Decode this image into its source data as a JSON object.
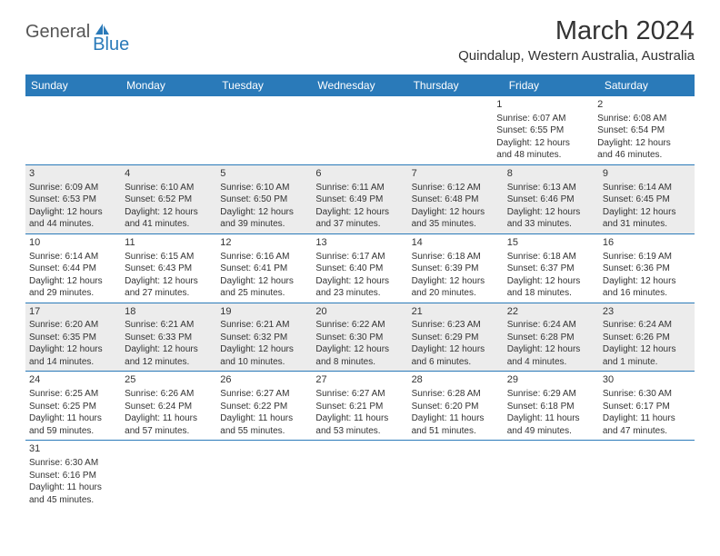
{
  "logo": {
    "text_general": "General",
    "text_blue": "Blue",
    "icon_name": "sail-icon",
    "icon_color": "#2a7ab9"
  },
  "title": "March 2024",
  "location": "Quindalup, Western Australia, Australia",
  "colors": {
    "header_bar": "#2a7ab9",
    "shaded_cell": "#ececec",
    "row_border": "#2a7ab9",
    "text": "#333333",
    "background": "#ffffff"
  },
  "weekdays": [
    "Sunday",
    "Monday",
    "Tuesday",
    "Wednesday",
    "Thursday",
    "Friday",
    "Saturday"
  ],
  "weeks": [
    [
      null,
      null,
      null,
      null,
      null,
      {
        "day": "1",
        "sunrise": "Sunrise: 6:07 AM",
        "sunset": "Sunset: 6:55 PM",
        "daylight1": "Daylight: 12 hours",
        "daylight2": "and 48 minutes."
      },
      {
        "day": "2",
        "sunrise": "Sunrise: 6:08 AM",
        "sunset": "Sunset: 6:54 PM",
        "daylight1": "Daylight: 12 hours",
        "daylight2": "and 46 minutes."
      }
    ],
    [
      {
        "day": "3",
        "sunrise": "Sunrise: 6:09 AM",
        "sunset": "Sunset: 6:53 PM",
        "daylight1": "Daylight: 12 hours",
        "daylight2": "and 44 minutes."
      },
      {
        "day": "4",
        "sunrise": "Sunrise: 6:10 AM",
        "sunset": "Sunset: 6:52 PM",
        "daylight1": "Daylight: 12 hours",
        "daylight2": "and 41 minutes."
      },
      {
        "day": "5",
        "sunrise": "Sunrise: 6:10 AM",
        "sunset": "Sunset: 6:50 PM",
        "daylight1": "Daylight: 12 hours",
        "daylight2": "and 39 minutes."
      },
      {
        "day": "6",
        "sunrise": "Sunrise: 6:11 AM",
        "sunset": "Sunset: 6:49 PM",
        "daylight1": "Daylight: 12 hours",
        "daylight2": "and 37 minutes."
      },
      {
        "day": "7",
        "sunrise": "Sunrise: 6:12 AM",
        "sunset": "Sunset: 6:48 PM",
        "daylight1": "Daylight: 12 hours",
        "daylight2": "and 35 minutes."
      },
      {
        "day": "8",
        "sunrise": "Sunrise: 6:13 AM",
        "sunset": "Sunset: 6:46 PM",
        "daylight1": "Daylight: 12 hours",
        "daylight2": "and 33 minutes."
      },
      {
        "day": "9",
        "sunrise": "Sunrise: 6:14 AM",
        "sunset": "Sunset: 6:45 PM",
        "daylight1": "Daylight: 12 hours",
        "daylight2": "and 31 minutes."
      }
    ],
    [
      {
        "day": "10",
        "sunrise": "Sunrise: 6:14 AM",
        "sunset": "Sunset: 6:44 PM",
        "daylight1": "Daylight: 12 hours",
        "daylight2": "and 29 minutes."
      },
      {
        "day": "11",
        "sunrise": "Sunrise: 6:15 AM",
        "sunset": "Sunset: 6:43 PM",
        "daylight1": "Daylight: 12 hours",
        "daylight2": "and 27 minutes."
      },
      {
        "day": "12",
        "sunrise": "Sunrise: 6:16 AM",
        "sunset": "Sunset: 6:41 PM",
        "daylight1": "Daylight: 12 hours",
        "daylight2": "and 25 minutes."
      },
      {
        "day": "13",
        "sunrise": "Sunrise: 6:17 AM",
        "sunset": "Sunset: 6:40 PM",
        "daylight1": "Daylight: 12 hours",
        "daylight2": "and 23 minutes."
      },
      {
        "day": "14",
        "sunrise": "Sunrise: 6:18 AM",
        "sunset": "Sunset: 6:39 PM",
        "daylight1": "Daylight: 12 hours",
        "daylight2": "and 20 minutes."
      },
      {
        "day": "15",
        "sunrise": "Sunrise: 6:18 AM",
        "sunset": "Sunset: 6:37 PM",
        "daylight1": "Daylight: 12 hours",
        "daylight2": "and 18 minutes."
      },
      {
        "day": "16",
        "sunrise": "Sunrise: 6:19 AM",
        "sunset": "Sunset: 6:36 PM",
        "daylight1": "Daylight: 12 hours",
        "daylight2": "and 16 minutes."
      }
    ],
    [
      {
        "day": "17",
        "sunrise": "Sunrise: 6:20 AM",
        "sunset": "Sunset: 6:35 PM",
        "daylight1": "Daylight: 12 hours",
        "daylight2": "and 14 minutes."
      },
      {
        "day": "18",
        "sunrise": "Sunrise: 6:21 AM",
        "sunset": "Sunset: 6:33 PM",
        "daylight1": "Daylight: 12 hours",
        "daylight2": "and 12 minutes."
      },
      {
        "day": "19",
        "sunrise": "Sunrise: 6:21 AM",
        "sunset": "Sunset: 6:32 PM",
        "daylight1": "Daylight: 12 hours",
        "daylight2": "and 10 minutes."
      },
      {
        "day": "20",
        "sunrise": "Sunrise: 6:22 AM",
        "sunset": "Sunset: 6:30 PM",
        "daylight1": "Daylight: 12 hours",
        "daylight2": "and 8 minutes."
      },
      {
        "day": "21",
        "sunrise": "Sunrise: 6:23 AM",
        "sunset": "Sunset: 6:29 PM",
        "daylight1": "Daylight: 12 hours",
        "daylight2": "and 6 minutes."
      },
      {
        "day": "22",
        "sunrise": "Sunrise: 6:24 AM",
        "sunset": "Sunset: 6:28 PM",
        "daylight1": "Daylight: 12 hours",
        "daylight2": "and 4 minutes."
      },
      {
        "day": "23",
        "sunrise": "Sunrise: 6:24 AM",
        "sunset": "Sunset: 6:26 PM",
        "daylight1": "Daylight: 12 hours",
        "daylight2": "and 1 minute."
      }
    ],
    [
      {
        "day": "24",
        "sunrise": "Sunrise: 6:25 AM",
        "sunset": "Sunset: 6:25 PM",
        "daylight1": "Daylight: 11 hours",
        "daylight2": "and 59 minutes."
      },
      {
        "day": "25",
        "sunrise": "Sunrise: 6:26 AM",
        "sunset": "Sunset: 6:24 PM",
        "daylight1": "Daylight: 11 hours",
        "daylight2": "and 57 minutes."
      },
      {
        "day": "26",
        "sunrise": "Sunrise: 6:27 AM",
        "sunset": "Sunset: 6:22 PM",
        "daylight1": "Daylight: 11 hours",
        "daylight2": "and 55 minutes."
      },
      {
        "day": "27",
        "sunrise": "Sunrise: 6:27 AM",
        "sunset": "Sunset: 6:21 PM",
        "daylight1": "Daylight: 11 hours",
        "daylight2": "and 53 minutes."
      },
      {
        "day": "28",
        "sunrise": "Sunrise: 6:28 AM",
        "sunset": "Sunset: 6:20 PM",
        "daylight1": "Daylight: 11 hours",
        "daylight2": "and 51 minutes."
      },
      {
        "day": "29",
        "sunrise": "Sunrise: 6:29 AM",
        "sunset": "Sunset: 6:18 PM",
        "daylight1": "Daylight: 11 hours",
        "daylight2": "and 49 minutes."
      },
      {
        "day": "30",
        "sunrise": "Sunrise: 6:30 AM",
        "sunset": "Sunset: 6:17 PM",
        "daylight1": "Daylight: 11 hours",
        "daylight2": "and 47 minutes."
      }
    ],
    [
      {
        "day": "31",
        "sunrise": "Sunrise: 6:30 AM",
        "sunset": "Sunset: 6:16 PM",
        "daylight1": "Daylight: 11 hours",
        "daylight2": "and 45 minutes."
      },
      null,
      null,
      null,
      null,
      null,
      null
    ]
  ],
  "shaded_rows": [
    1,
    3
  ]
}
